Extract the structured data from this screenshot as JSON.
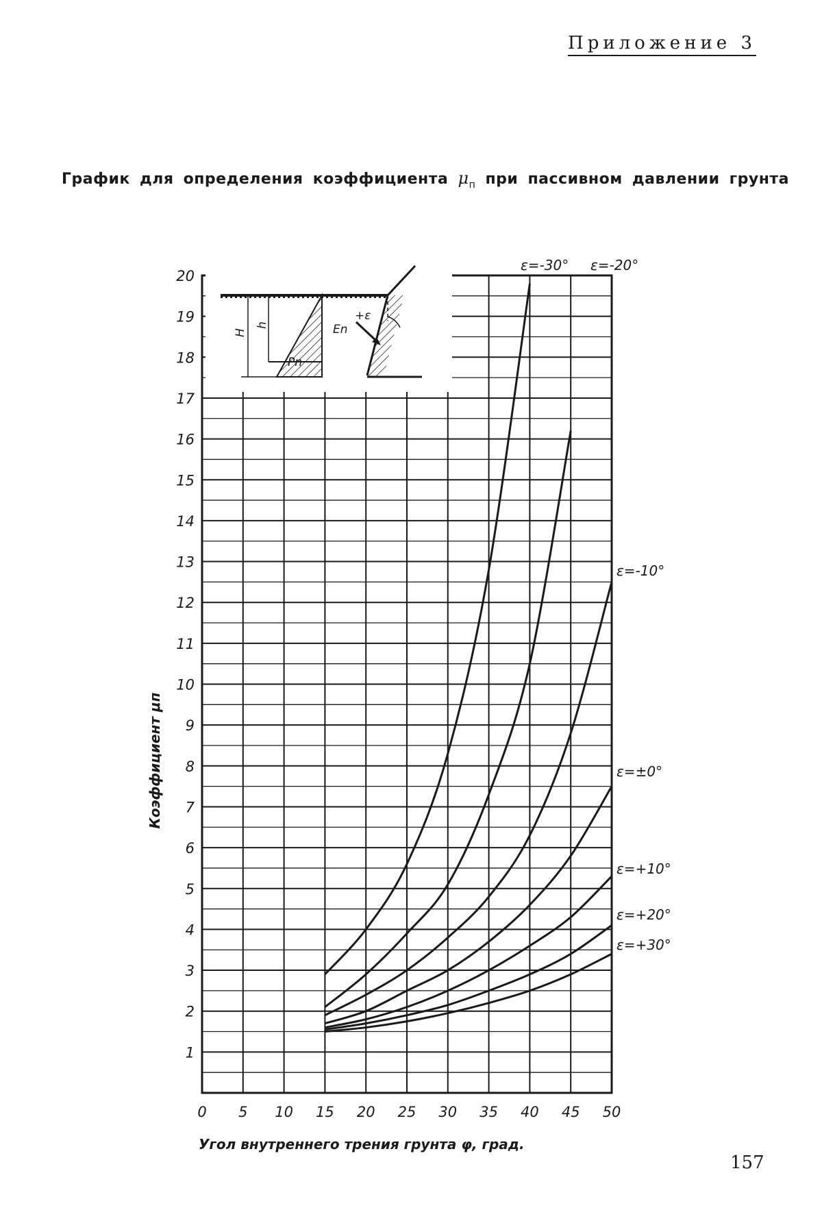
{
  "header": {
    "appendix": "Приложение 3",
    "title_before": "График для определения коэффициента",
    "title_mu": "μ",
    "title_sub": "п",
    "title_after": "при пассивном давлении грунта"
  },
  "page_number": "157",
  "chart_data": {
    "type": "line",
    "xlabel": "Угол внутреннего трения грунта φ, град.",
    "ylabel": "Коэффициент μп",
    "xlim": [
      0,
      50
    ],
    "ylim": [
      0,
      20
    ],
    "x_ticks": [
      "0",
      "5",
      "10",
      "15",
      "20",
      "25",
      "30",
      "35",
      "40",
      "45",
      "50"
    ],
    "y_ticks": [
      "1",
      "2",
      "3",
      "4",
      "5",
      "6",
      "7",
      "8",
      "9",
      "10",
      "11",
      "12",
      "13",
      "14",
      "15",
      "16",
      "17",
      "18",
      "19",
      "20"
    ],
    "grid": true,
    "x": [
      15,
      20,
      25,
      30,
      35,
      40,
      45,
      50
    ],
    "series": [
      {
        "name": "ε=-30°",
        "values": [
          2.9,
          4.0,
          5.6,
          8.3,
          12.8,
          19.8,
          null,
          null
        ]
      },
      {
        "name": "ε=-20°",
        "values": [
          2.1,
          2.9,
          3.9,
          5.1,
          7.3,
          10.5,
          16.2,
          null
        ]
      },
      {
        "name": "ε=-10°",
        "values": [
          1.9,
          2.4,
          3.0,
          3.8,
          4.8,
          6.3,
          8.8,
          12.5
        ]
      },
      {
        "name": "ε=±0°",
        "values": [
          1.7,
          2.0,
          2.5,
          3.0,
          3.7,
          4.6,
          5.8,
          7.5
        ]
      },
      {
        "name": "ε=+10°",
        "values": [
          1.6,
          1.8,
          2.1,
          2.5,
          3.0,
          3.6,
          4.3,
          5.3
        ]
      },
      {
        "name": "ε=+20°",
        "values": [
          1.55,
          1.7,
          1.9,
          2.15,
          2.5,
          2.9,
          3.4,
          4.1
        ]
      },
      {
        "name": "ε=+30°",
        "values": [
          1.5,
          1.6,
          1.75,
          1.95,
          2.2,
          2.5,
          2.9,
          3.4
        ]
      }
    ],
    "inset": {
      "labels": [
        "H",
        "h",
        "+ε",
        "En",
        "Pn"
      ]
    }
  }
}
